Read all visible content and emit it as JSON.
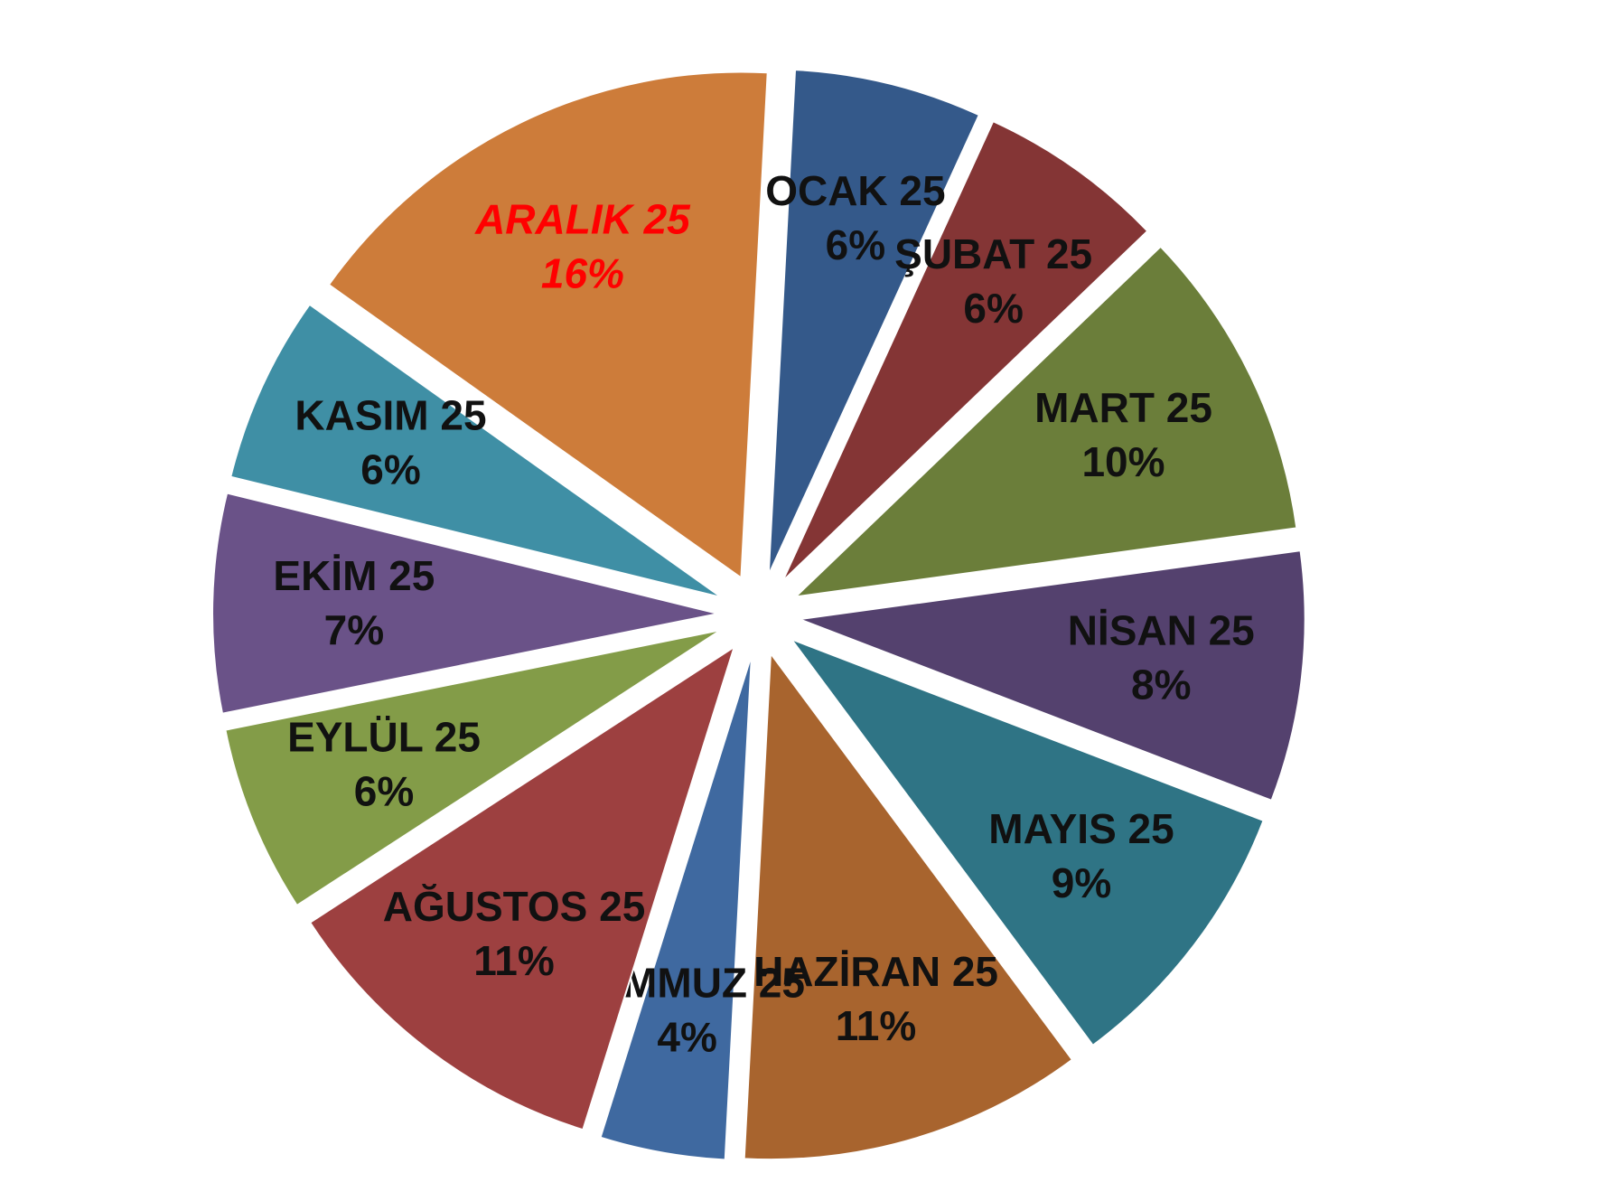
{
  "chart_data": {
    "type": "pie",
    "categories": [
      "OCAK 25",
      "ŞUBAT 25",
      "MART 25",
      "NİSAN 25",
      "MAYIS 25",
      "HAZİRAN 25",
      "TEMMUZ 25",
      "AĞUSTOS 25",
      "EYLÜL 25",
      "EKİM 25",
      "KASIM 25",
      "ARALIK 25"
    ],
    "values": [
      6,
      6,
      10,
      8,
      9,
      11,
      4,
      11,
      6,
      7,
      6,
      16
    ],
    "value_labels": [
      "6%",
      "6%",
      "10%",
      "8%",
      "9%",
      "11%",
      "4%",
      "11%",
      "6%",
      "7%",
      "6%",
      "16%"
    ],
    "colors": [
      "#34598a",
      "#843535",
      "#6b7e3a",
      "#54416e",
      "#2f7485",
      "#a8642e",
      "#3f69a0",
      "#9d4040",
      "#839c48",
      "#6a5288",
      "#3f8fa5",
      "#cd7c3a"
    ],
    "highlight_index": 11,
    "highlight_color": "#ff0000"
  }
}
